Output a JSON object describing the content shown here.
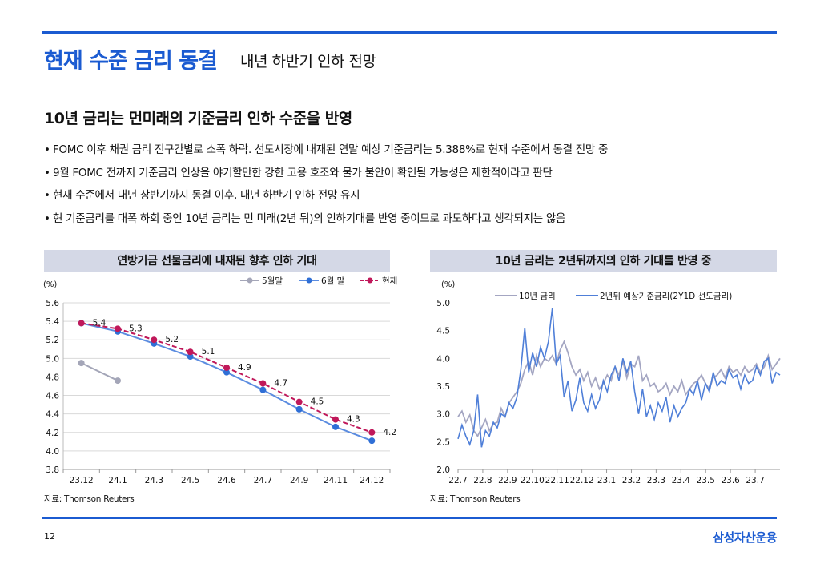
{
  "header": {
    "title": "현재 수준 금리 동결",
    "subtitle": "내년 하반기 인하 전망"
  },
  "section": {
    "heading": "10년 금리는 먼미래의 기준금리 인하 수준을 반영",
    "bullet_mark": "•",
    "bullets": [
      "FOMC 이후 채권 금리 전구간별로 소폭 하락. 선도시장에 내재된 연말 예상 기준금리는 5.388%로 현재 수준에서 동결 전망 중",
      "9월 FOMC 전까지 기준금리 인상을 야기할만한 강한 고용 호조와 물가 불안이 확인될 가능성은 제한적이라고 판단",
      "현재 수준에서 내년 상반기까지 동결 이후, 내년 하반기 인하 전망 유지",
      "현 기준금리를 대폭 하회 중인 10년 금리는 먼 미래(2년 뒤)의 인하기대를 반영 중이므로 과도하다고 생각되지는 않음"
    ]
  },
  "chart_data": [
    {
      "type": "line",
      "title": "연방기금 선물금리에 내재된 향후 인하 기대",
      "ylabel": "(%)",
      "ylim": [
        3.8,
        5.6
      ],
      "yticks": [
        "5.6",
        "5.4",
        "5.2",
        "5.0",
        "4.8",
        "4.6",
        "4.4",
        "4.2",
        "4.0",
        "3.8"
      ],
      "categories": [
        "23.12",
        "24.1",
        "24.3",
        "24.5",
        "24.6",
        "24.7",
        "24.9",
        "24.11",
        "24.12"
      ],
      "series": [
        {
          "name": "5월말",
          "color": "#a4a6b8",
          "marker": "#a4a6b8",
          "values": [
            4.95,
            4.76,
            null,
            null,
            null,
            null,
            null,
            null,
            null
          ]
        },
        {
          "name": "6월 말",
          "color": "#5b8ce0",
          "marker": "#2f6fd6",
          "values": [
            5.38,
            5.29,
            5.16,
            5.02,
            4.85,
            4.66,
            4.45,
            4.26,
            4.11
          ]
        },
        {
          "name": "현재",
          "color": "#c0185a",
          "marker": "#c0185a",
          "dashed": true,
          "values": [
            5.38,
            5.32,
            5.2,
            5.07,
            4.9,
            4.73,
            4.53,
            4.34,
            4.2
          ]
        }
      ],
      "data_labels": [
        "5.4",
        "5.3",
        "5.2",
        "5.1",
        "4.9",
        "4.7",
        "4.5",
        "4.3",
        "4.2"
      ],
      "legend": "top-right",
      "source": "자료: Thomson Reuters"
    },
    {
      "type": "line",
      "title": "10년 금리는 2년뒤까지의 인하 기대를 반영 중",
      "ylabel": "(%)",
      "ylim": [
        2.0,
        5.0
      ],
      "yticks": [
        "5.0",
        "4.5",
        "4.0",
        "3.5",
        "3.0",
        "2.5",
        "2.0"
      ],
      "categories": [
        "22.7",
        "22.8",
        "22.9",
        "22.10",
        "22.11",
        "22.12",
        "23.1",
        "23.2",
        "23.3",
        "23.4",
        "23.5",
        "23.6",
        "23.7"
      ],
      "x": [
        0,
        0.15,
        0.3,
        0.45,
        0.6,
        0.75,
        0.9,
        1.05,
        1.2,
        1.35,
        1.5,
        1.65,
        1.8,
        1.95,
        2.1,
        2.25,
        2.4,
        2.55,
        2.7,
        2.85,
        3.0,
        3.15,
        3.3,
        3.45,
        3.6,
        3.75,
        3.9,
        4.05,
        4.2,
        4.35,
        4.5,
        4.65,
        4.8,
        4.95,
        5.1,
        5.25,
        5.4,
        5.55,
        5.7,
        5.85,
        6.0,
        6.15,
        6.3,
        6.45,
        6.6,
        6.75,
        6.9,
        7.05,
        7.2,
        7.35,
        7.5,
        7.65,
        7.8,
        7.95,
        8.1,
        8.25,
        8.4,
        8.55,
        8.7,
        8.85,
        9.0,
        9.15,
        9.3,
        9.45,
        9.6,
        9.75,
        9.9,
        10.05,
        10.2,
        10.35,
        10.5,
        10.65,
        10.8,
        10.95,
        11.1,
        11.25,
        11.4,
        11.55,
        11.7,
        11.85,
        12.0,
        12.15,
        12.3
      ],
      "series": [
        {
          "name": "10년 금리",
          "color": "#a4a6c2",
          "values": [
            2.95,
            3.05,
            2.85,
            2.98,
            2.7,
            2.6,
            2.75,
            2.9,
            2.7,
            2.82,
            2.85,
            3.1,
            2.95,
            3.2,
            3.3,
            3.4,
            3.55,
            3.8,
            3.95,
            3.7,
            4.05,
            3.85,
            4.0,
            3.95,
            4.05,
            3.9,
            4.15,
            4.3,
            4.1,
            3.85,
            3.7,
            3.8,
            3.6,
            3.75,
            3.5,
            3.65,
            3.45,
            3.55,
            3.7,
            3.6,
            3.85,
            3.7,
            3.95,
            3.65,
            3.9,
            3.85,
            4.05,
            3.6,
            3.7,
            3.5,
            3.55,
            3.4,
            3.45,
            3.55,
            3.35,
            3.5,
            3.4,
            3.6,
            3.35,
            3.45,
            3.55,
            3.6,
            3.7,
            3.55,
            3.45,
            3.65,
            3.7,
            3.8,
            3.65,
            3.85,
            3.75,
            3.8,
            3.7,
            3.85,
            3.75,
            3.8,
            3.9,
            3.75,
            3.85,
            4.05,
            3.8,
            3.9,
            4.0
          ]
        },
        {
          "name": "2년뒤 예상기준금리(2Y1D 선도금리)",
          "color": "#4f7fd8",
          "values": [
            2.55,
            2.8,
            2.6,
            2.45,
            2.7,
            3.35,
            2.4,
            2.7,
            2.6,
            2.85,
            2.75,
            3.0,
            2.95,
            3.2,
            3.1,
            3.3,
            3.8,
            4.55,
            3.75,
            4.1,
            3.85,
            4.2,
            4.0,
            4.3,
            4.9,
            3.9,
            4.05,
            3.3,
            3.6,
            3.05,
            3.25,
            3.65,
            3.2,
            3.05,
            3.35,
            3.1,
            3.25,
            3.6,
            3.4,
            3.7,
            3.85,
            3.6,
            4.0,
            3.75,
            3.95,
            3.4,
            3.0,
            3.45,
            2.95,
            3.15,
            2.9,
            3.2,
            3.05,
            3.3,
            2.85,
            3.15,
            2.95,
            3.1,
            3.2,
            3.45,
            3.35,
            3.6,
            3.25,
            3.55,
            3.4,
            3.75,
            3.5,
            3.6,
            3.55,
            3.8,
            3.65,
            3.7,
            3.45,
            3.7,
            3.55,
            3.6,
            3.85,
            3.7,
            3.95,
            4.0,
            3.55,
            3.75,
            3.7
          ]
        }
      ],
      "legend": "top",
      "source": "자료: Thomson Reuters"
    }
  ],
  "footer": {
    "page_number": "12",
    "brand": "삼성자산운용",
    "accent_color": "#1b5bd1"
  }
}
